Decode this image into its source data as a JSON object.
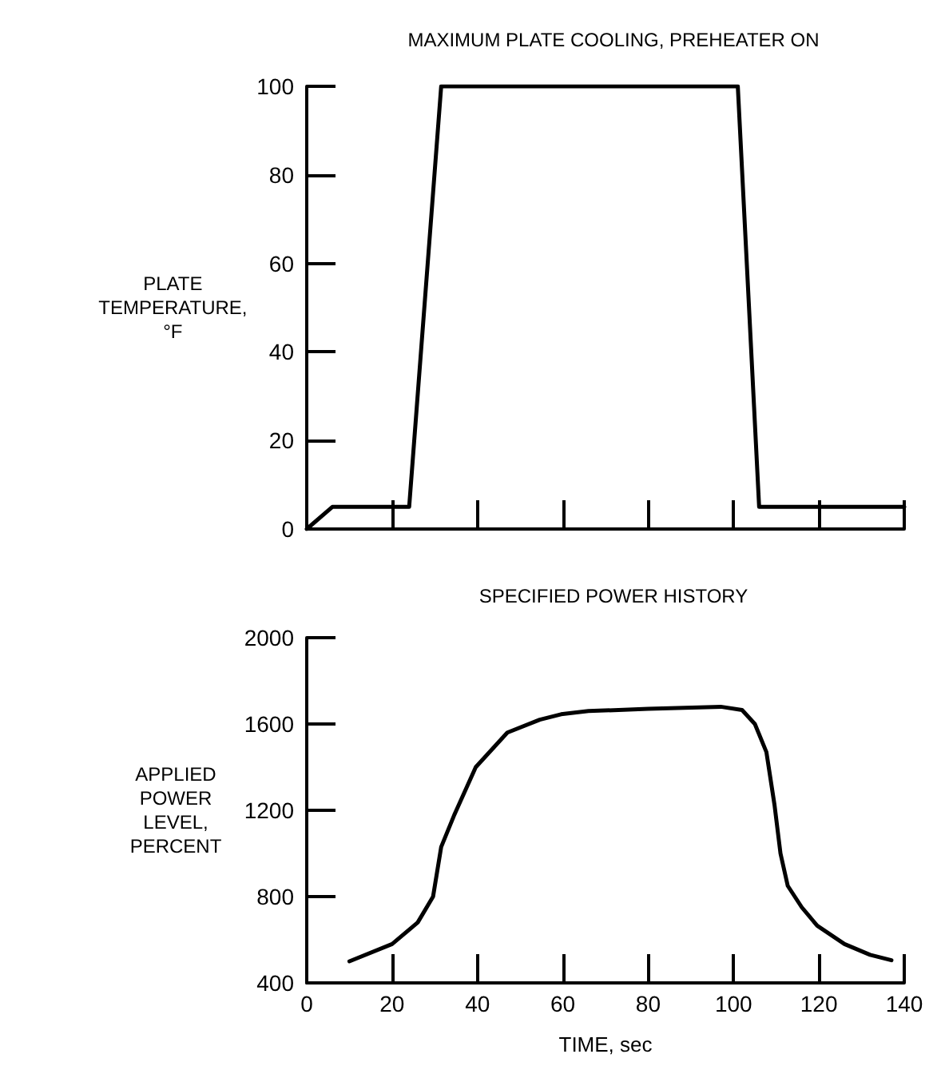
{
  "chart_data": [
    {
      "type": "line",
      "title": "MAXIMUM PLATE COOLING, PREHEATER ON",
      "ylabel": "PLATE\nTEMPERATURE,\n°F",
      "xlim": [
        0,
        140
      ],
      "xticks": [
        0,
        20,
        40,
        60,
        80,
        100,
        120,
        140
      ],
      "ylim": [
        0,
        100
      ],
      "yticks": [
        0,
        20,
        40,
        60,
        80,
        100
      ],
      "tick_labels": "y",
      "series": [
        {
          "color": "#000000",
          "x": [
            0,
            6,
            24,
            31.5,
            101,
            106,
            140
          ],
          "values": [
            0,
            5,
            5,
            100,
            100,
            5,
            5
          ]
        }
      ]
    },
    {
      "type": "line",
      "title": "SPECIFIED POWER HISTORY",
      "xlabel": "TIME, sec",
      "ylabel": "APPLIED\nPOWER\nLEVEL,\nPERCENT",
      "xlim": [
        0,
        140
      ],
      "xticks": [
        0,
        20,
        40,
        60,
        80,
        100,
        120,
        140
      ],
      "ylim": [
        400,
        2000
      ],
      "yticks": [
        400,
        800,
        1200,
        1600,
        2000
      ],
      "series": [
        {
          "color": "#000000",
          "x": [
            10,
            20,
            26,
            29.6,
            31.5,
            34.6,
            39.6,
            47,
            54.6,
            59.6,
            66,
            80,
            97,
            102,
            105,
            107.7,
            109.6,
            111,
            112.7,
            116,
            119.6,
            126,
            132,
            137
          ],
          "values": [
            500,
            580,
            680,
            800,
            1030,
            1180,
            1400,
            1560,
            1620,
            1645,
            1660,
            1670,
            1680,
            1665,
            1600,
            1470,
            1225,
            1000,
            850,
            750,
            665,
            580,
            530,
            505
          ]
        }
      ]
    }
  ]
}
